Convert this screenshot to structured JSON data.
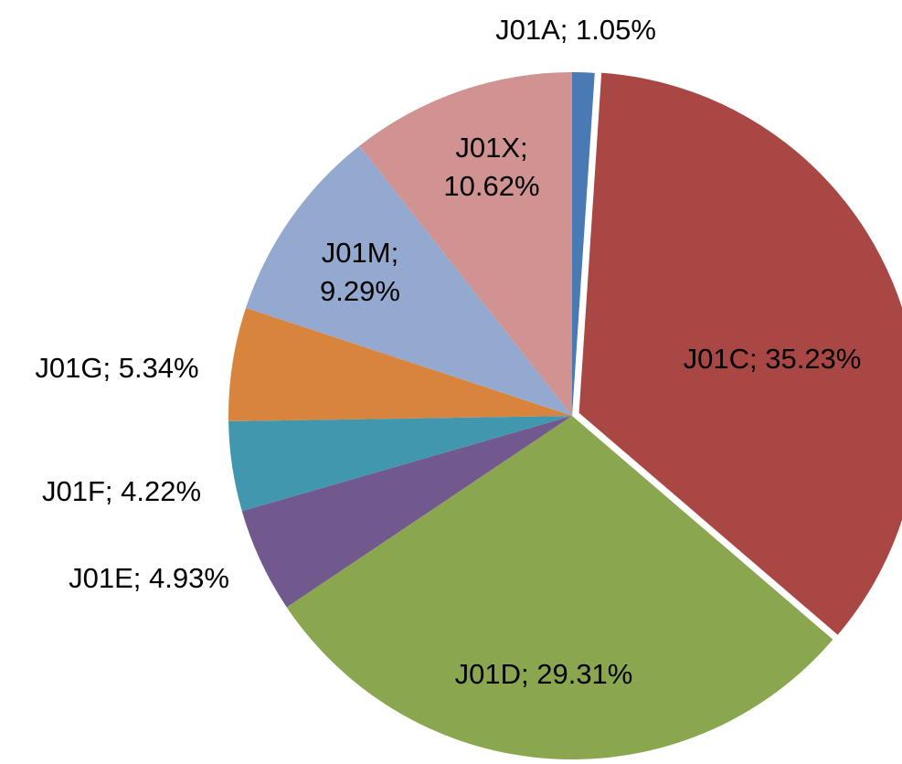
{
  "chart_data": {
    "type": "pie",
    "values": [
      1.05,
      35.23,
      29.31,
      4.93,
      4.22,
      5.34,
      9.29,
      10.62
    ],
    "value_labels": [
      "J01A; 1.05%",
      "J01C; 35.23%",
      "J01D; 29.31%",
      "J01E; 4.93%",
      "J01F; 4.22%",
      "J01G; 5.34%",
      "J01M; 9.29%",
      "J01X; 10.62%"
    ],
    "colors": [
      "#4a7ab3",
      "#a84744",
      "#8aa74f",
      "#71598e",
      "#4198ae",
      "#d9843d",
      "#94a9d0",
      "#d09391"
    ]
  }
}
